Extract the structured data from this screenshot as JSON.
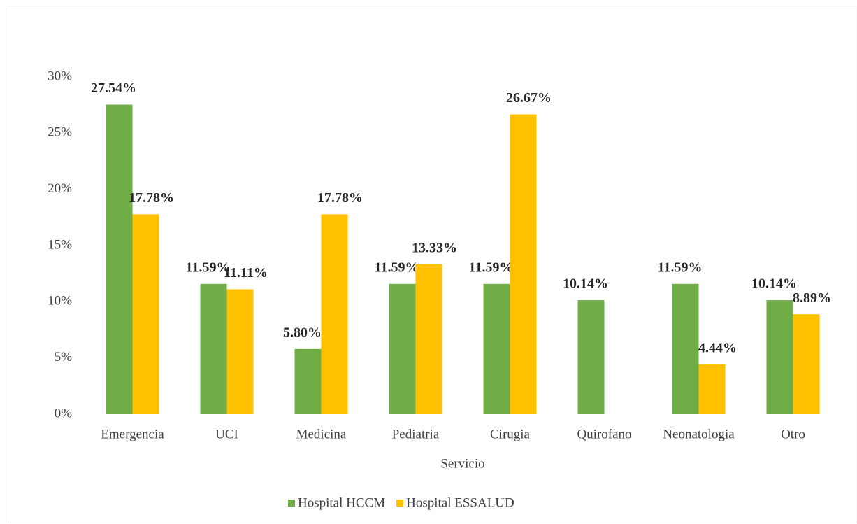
{
  "chart_data": {
    "type": "bar",
    "x_label": "Servicio",
    "categories": [
      "Emergencia",
      "UCI",
      "Medicina",
      "Pediatria",
      "Cirugia",
      "Quirofano",
      "Neonatologia",
      "Otro"
    ],
    "series": [
      {
        "name": "Hospital HCCM",
        "color": "#70ad47",
        "values": [
          27.54,
          11.59,
          5.8,
          11.59,
          11.59,
          10.14,
          11.59,
          10.14
        ],
        "value_labels": [
          "27.54%",
          "11.59%",
          "5.80%",
          "11.59%",
          "11.59%",
          "10.14%",
          "11.59%",
          "10.14%"
        ]
      },
      {
        "name": "Hospital ESSALUD",
        "color": "#ffc000",
        "values": [
          17.78,
          11.11,
          17.78,
          13.33,
          26.67,
          null,
          4.44,
          8.89
        ],
        "value_labels": [
          "17.78%",
          "11.11%",
          "17.78%",
          "13.33%",
          "26.67%",
          null,
          "4.44%",
          "8.89%"
        ]
      }
    ],
    "ylim": [
      0,
      30
    ],
    "yticks": [
      {
        "value": 0,
        "label": "0%"
      },
      {
        "value": 5,
        "label": "5%"
      },
      {
        "value": 10,
        "label": "10%"
      },
      {
        "value": 15,
        "label": "15%"
      },
      {
        "value": 20,
        "label": "20%"
      },
      {
        "value": 25,
        "label": "25%"
      },
      {
        "value": 30,
        "label": "30%"
      }
    ],
    "legend": "bottom"
  }
}
